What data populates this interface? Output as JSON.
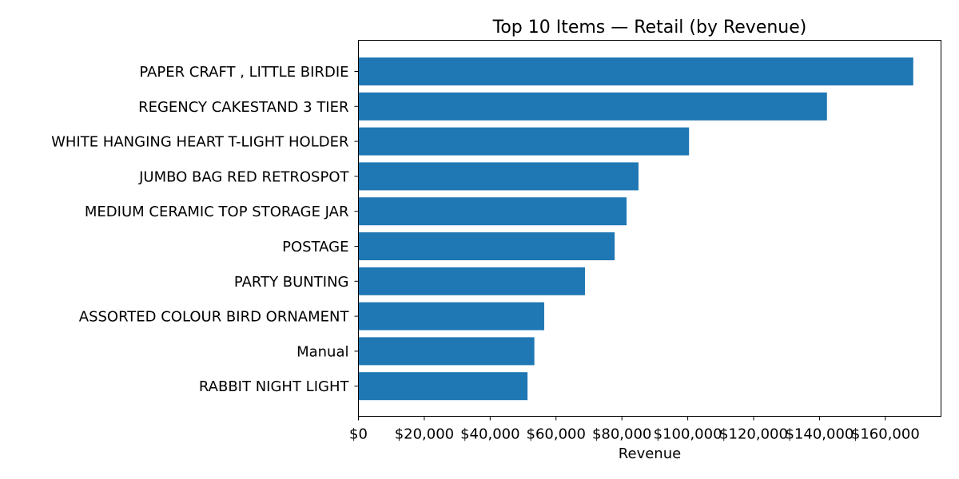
{
  "chart_data": {
    "type": "bar",
    "orientation": "horizontal",
    "title": "Top 10 Items — Retail (by Revenue)",
    "xlabel": "Revenue",
    "ylabel": "",
    "categories": [
      "PAPER CRAFT , LITTLE BIRDIE",
      "REGENCY CAKESTAND 3 TIER",
      "WHITE HANGING HEART T-LIGHT HOLDER",
      "JUMBO BAG RED RETROSPOT",
      "MEDIUM CERAMIC TOP STORAGE JAR",
      "POSTAGE",
      "PARTY BUNTING",
      "ASSORTED COLOUR BIRD ORNAMENT",
      "Manual",
      "RABBIT NIGHT LIGHT"
    ],
    "values": [
      168469,
      142264,
      100392,
      85040,
      81417,
      77804,
      68786,
      56413,
      53420,
      51346
    ],
    "xlim": [
      0,
      176900
    ],
    "xticks": [
      0,
      20000,
      40000,
      60000,
      80000,
      100000,
      120000,
      140000,
      160000
    ],
    "xtick_labels": [
      "$0",
      "$20,000",
      "$40,000",
      "$60,000",
      "$80,000",
      "$100,000",
      "$120,000",
      "$140,000",
      "$160,000"
    ],
    "bar_color": "#1f77b4",
    "grid": false,
    "legend": false
  }
}
